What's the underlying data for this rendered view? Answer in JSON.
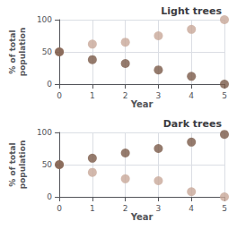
{
  "chart_data": [
    {
      "type": "scatter",
      "title": "Light trees",
      "xlabel": "Year",
      "ylabel": "% of total\npopulation",
      "x": [
        0,
        1,
        2,
        3,
        4,
        5
      ],
      "series": [
        {
          "color": "#c8a898",
          "values": [
            50,
            62,
            65,
            75,
            85,
            100
          ]
        },
        {
          "color": "#7a5a48",
          "values": [
            50,
            38,
            32,
            22,
            12,
            0
          ]
        }
      ],
      "xlim": [
        0,
        5
      ],
      "ylim": [
        0,
        100
      ],
      "xticks": [
        0,
        1,
        2,
        3,
        4,
        5
      ],
      "yticks": [
        0,
        50,
        100
      ],
      "grid": true
    },
    {
      "type": "scatter",
      "title": "Dark trees",
      "xlabel": "Year",
      "ylabel": "% of total\npopulation",
      "x": [
        0,
        1,
        2,
        3,
        4,
        5
      ],
      "series": [
        {
          "color": "#c8a898",
          "values": [
            50,
            38,
            28,
            25,
            8,
            0
          ]
        },
        {
          "color": "#7a5a48",
          "values": [
            50,
            60,
            68,
            75,
            85,
            97
          ]
        }
      ],
      "xlim": [
        0,
        5
      ],
      "ylim": [
        0,
        100
      ],
      "xticks": [
        0,
        1,
        2,
        3,
        4,
        5
      ],
      "yticks": [
        0,
        50,
        100
      ],
      "grid": true
    }
  ]
}
